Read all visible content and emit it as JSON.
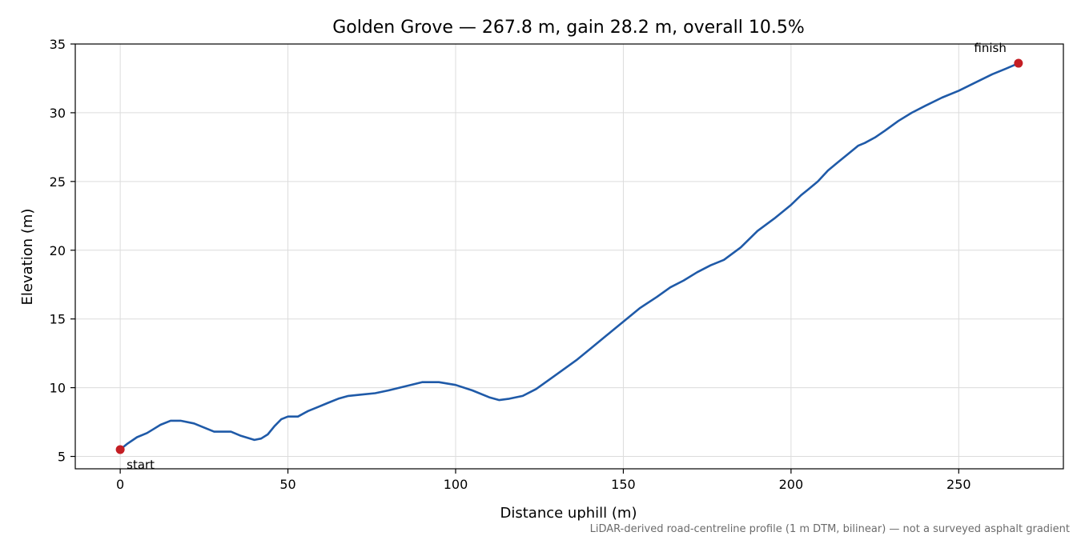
{
  "chart_data": {
    "type": "line",
    "title": "Golden Grove — 267.8 m, gain 28.2 m, overall 10.5%",
    "xlabel": "Distance uphill (m)",
    "ylabel": "Elevation (m)",
    "xlim": [
      -13.4,
      281.2
    ],
    "ylim": [
      4.1,
      35
    ],
    "xticks": [
      0,
      50,
      100,
      150,
      200,
      250
    ],
    "yticks": [
      5,
      10,
      15,
      20,
      25,
      30,
      35
    ],
    "grid": true,
    "colors": {
      "line": "#1f5aa8",
      "marker": "#c41e24",
      "grid": "#dcdcdc"
    },
    "series": [
      {
        "x": [
          0,
          2,
          5,
          8,
          10,
          12,
          15,
          18,
          22,
          25,
          28,
          30,
          33,
          36,
          40,
          42,
          44,
          46,
          48,
          50,
          53,
          56,
          59,
          62,
          65,
          68,
          72,
          76,
          80,
          85,
          90,
          95,
          100,
          105,
          110,
          113,
          116,
          120,
          124,
          128,
          132,
          136,
          140,
          145,
          150,
          155,
          160,
          164,
          168,
          172,
          176,
          180,
          185,
          190,
          195,
          200,
          203,
          205,
          208,
          211,
          214,
          217,
          220,
          222,
          225,
          228,
          232,
          236,
          240,
          245,
          250,
          255,
          260,
          264,
          267.8
        ],
        "y": [
          5.5,
          5.9,
          6.4,
          6.7,
          7.0,
          7.3,
          7.6,
          7.6,
          7.4,
          7.1,
          6.8,
          6.8,
          6.8,
          6.5,
          6.2,
          6.3,
          6.6,
          7.2,
          7.7,
          7.9,
          7.9,
          8.3,
          8.6,
          8.9,
          9.2,
          9.4,
          9.5,
          9.6,
          9.8,
          10.1,
          10.4,
          10.4,
          10.2,
          9.8,
          9.3,
          9.1,
          9.2,
          9.4,
          9.9,
          10.6,
          11.3,
          12.0,
          12.8,
          13.8,
          14.8,
          15.8,
          16.6,
          17.3,
          17.8,
          18.4,
          18.9,
          19.3,
          20.2,
          21.4,
          22.3,
          23.3,
          24.0,
          24.4,
          25.0,
          25.8,
          26.4,
          27.0,
          27.6,
          27.8,
          28.2,
          28.7,
          29.4,
          30.0,
          30.5,
          31.1,
          31.6,
          32.2,
          32.8,
          33.2,
          33.6
        ]
      }
    ],
    "annotations": [
      {
        "label": "start",
        "x": 0,
        "y": 5.5
      },
      {
        "label": "finish",
        "x": 267.8,
        "y": 33.6
      }
    ],
    "footnote": "LiDAR-derived road-centreline profile (1 m DTM, bilinear) — not a surveyed asphalt gradient"
  }
}
